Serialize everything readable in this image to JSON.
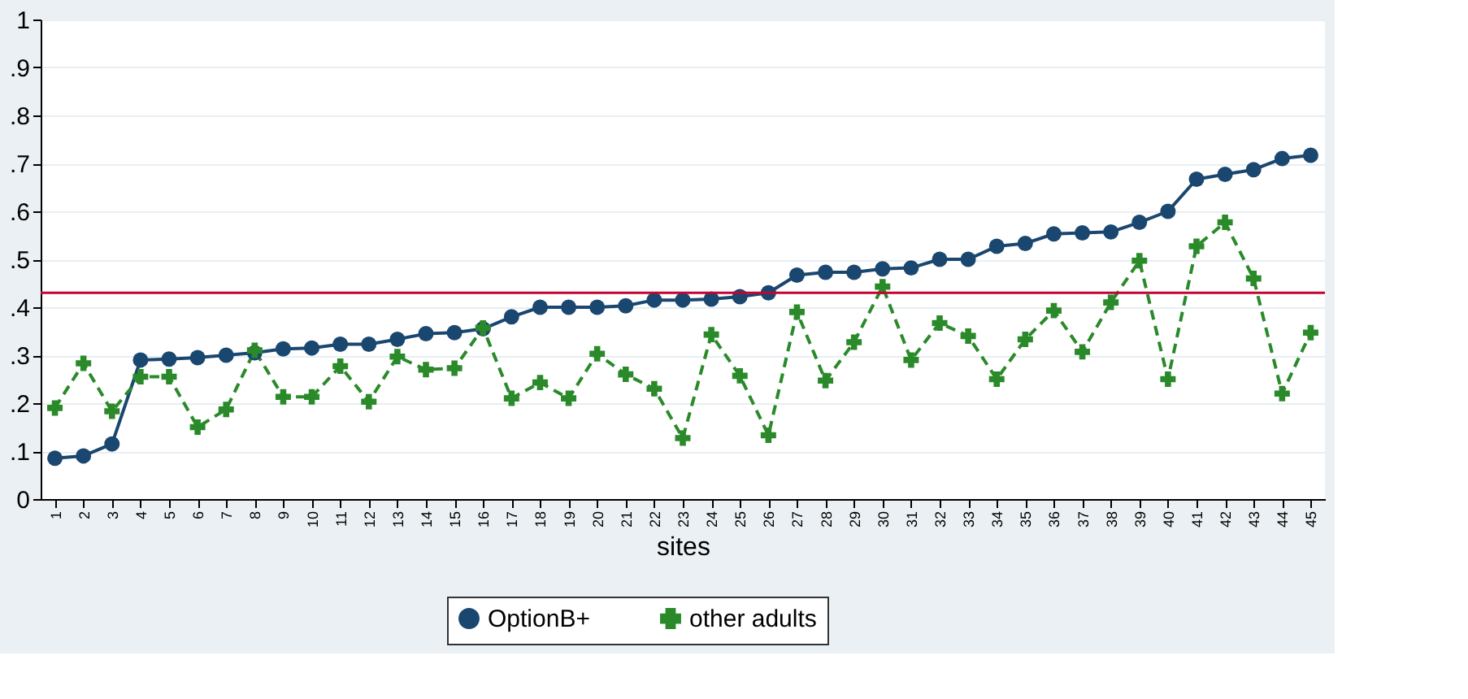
{
  "chart_data": {
    "type": "line",
    "xlabel": "sites",
    "categories": [
      "1",
      "2",
      "3",
      "4",
      "5",
      "6",
      "7",
      "8",
      "9",
      "10",
      "11",
      "12",
      "13",
      "14",
      "15",
      "16",
      "17",
      "18",
      "19",
      "20",
      "21",
      "22",
      "23",
      "24",
      "25",
      "26",
      "27",
      "28",
      "29",
      "30",
      "31",
      "32",
      "33",
      "34",
      "35",
      "36",
      "37",
      "38",
      "39",
      "40",
      "41",
      "42",
      "43",
      "44",
      "45"
    ],
    "series": [
      {
        "name": "OptionB+",
        "color": "#1a476f",
        "marker": "circle",
        "line_style": "solid",
        "values": [
          0.085,
          0.09,
          0.115,
          0.29,
          0.292,
          0.295,
          0.3,
          0.305,
          0.313,
          0.315,
          0.323,
          0.323,
          0.333,
          0.345,
          0.347,
          0.355,
          0.38,
          0.4,
          0.4,
          0.4,
          0.403,
          0.415,
          0.415,
          0.417,
          0.422,
          0.43,
          0.467,
          0.473,
          0.473,
          0.48,
          0.482,
          0.5,
          0.5,
          0.527,
          0.533,
          0.553,
          0.555,
          0.557,
          0.577,
          0.6,
          0.667,
          0.677,
          0.687,
          0.71,
          0.717
        ]
      },
      {
        "name": "other adults",
        "color": "#2a8a2a",
        "marker": "cross",
        "line_style": "dashed",
        "values": [
          0.19,
          0.283,
          0.183,
          0.255,
          0.255,
          0.15,
          0.187,
          0.31,
          0.213,
          0.213,
          0.277,
          0.203,
          0.297,
          0.27,
          0.273,
          0.357,
          0.21,
          0.243,
          0.21,
          0.303,
          0.26,
          0.23,
          0.127,
          0.343,
          0.257,
          0.133,
          0.39,
          0.247,
          0.327,
          0.443,
          0.29,
          0.367,
          0.34,
          0.25,
          0.333,
          0.393,
          0.307,
          0.41,
          0.497,
          0.25,
          0.527,
          0.577,
          0.46,
          0.22,
          0.347
        ]
      }
    ],
    "ylim": [
      0,
      1
    ],
    "yticks": [
      0,
      {
        "value": 0.1,
        "label": ".1"
      },
      {
        "value": 0.2,
        "label": ".2"
      },
      {
        "value": 0.3,
        "label": ".3"
      },
      {
        "value": 0.4,
        "label": ".4"
      },
      {
        "value": 0.5,
        "label": ".5"
      },
      {
        "value": 0.6,
        "label": ".6"
      },
      {
        "value": 0.7,
        "label": ".7"
      },
      {
        "value": 0.8,
        "label": ".8"
      },
      {
        "value": 0.9,
        "label": ".9"
      },
      1
    ],
    "ref_lines": [
      {
        "axis": "y",
        "value": 0.43,
        "color": "#c10534"
      }
    ],
    "grid": "y",
    "legend": "bottom"
  }
}
